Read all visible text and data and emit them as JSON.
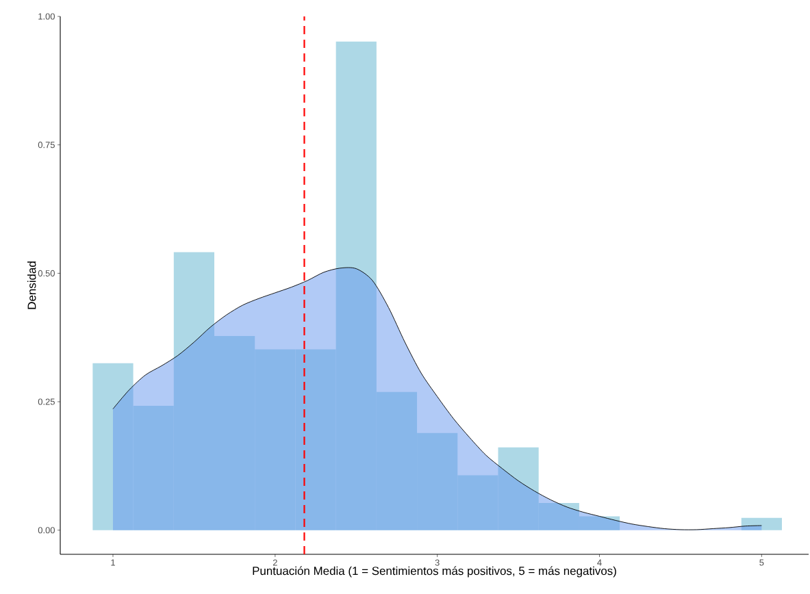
{
  "chart_data": {
    "type": "histogram",
    "xlabel": "Puntuación Media (1 = Sentimientos más positivos, 5 = más negativos)",
    "ylabel": "Densidad",
    "bins": [
      0.875,
      1.125,
      1.375,
      1.625,
      1.875,
      2.125,
      2.375,
      2.625,
      2.875,
      3.125,
      3.375,
      3.625,
      3.875,
      4.125,
      4.375,
      4.625,
      4.875,
      5.125
    ],
    "values": [
      0.325,
      0.242,
      0.541,
      0.378,
      0.352,
      0.352,
      0.951,
      0.269,
      0.189,
      0.107,
      0.161,
      0.053,
      0.027,
      0,
      0,
      0,
      0.024
    ],
    "color": "#add8e6",
    "series": [
      {
        "type": "area",
        "color": "#6495ed",
        "x": [
          1.0,
          1.1,
          1.2,
          1.3,
          1.4,
          1.5,
          1.6,
          1.7,
          1.8,
          1.9,
          2.0,
          2.1,
          2.2,
          2.3,
          2.4,
          2.5,
          2.6,
          2.7,
          2.8,
          2.9,
          3.0,
          3.1,
          3.2,
          3.3,
          3.4,
          3.5,
          3.6,
          3.7,
          3.8,
          3.9,
          4.0,
          4.1,
          4.2,
          4.3,
          4.4,
          4.5,
          4.6,
          4.7,
          4.8,
          4.9,
          5.0
        ],
        "values": [
          0.236,
          0.273,
          0.302,
          0.32,
          0.34,
          0.366,
          0.395,
          0.419,
          0.438,
          0.451,
          0.462,
          0.473,
          0.486,
          0.502,
          0.51,
          0.509,
          0.486,
          0.433,
          0.366,
          0.306,
          0.26,
          0.217,
          0.18,
          0.146,
          0.12,
          0.096,
          0.076,
          0.059,
          0.045,
          0.035,
          0.027,
          0.019,
          0.012,
          0.007,
          0.003,
          0.001,
          0.001,
          0.003,
          0.005,
          0.008,
          0.009
        ]
      }
    ],
    "xlim": [
      0.675,
      5.29
    ],
    "ylim": [
      -0.047,
      1.0
    ],
    "xticks": [
      1,
      2,
      3,
      4,
      5
    ],
    "yticks": [
      {
        "value": 0,
        "label": "0.00"
      },
      {
        "value": 0.25,
        "label": "0.25"
      },
      {
        "value": 0.5,
        "label": "0.50"
      },
      {
        "value": 0.75,
        "label": "0.75"
      },
      {
        "value": 1.0,
        "label": "1.00"
      }
    ],
    "ref_lines": [
      {
        "axis": "x",
        "value": 2.18,
        "color": "#ff0000",
        "line_style": "dashed"
      }
    ]
  }
}
